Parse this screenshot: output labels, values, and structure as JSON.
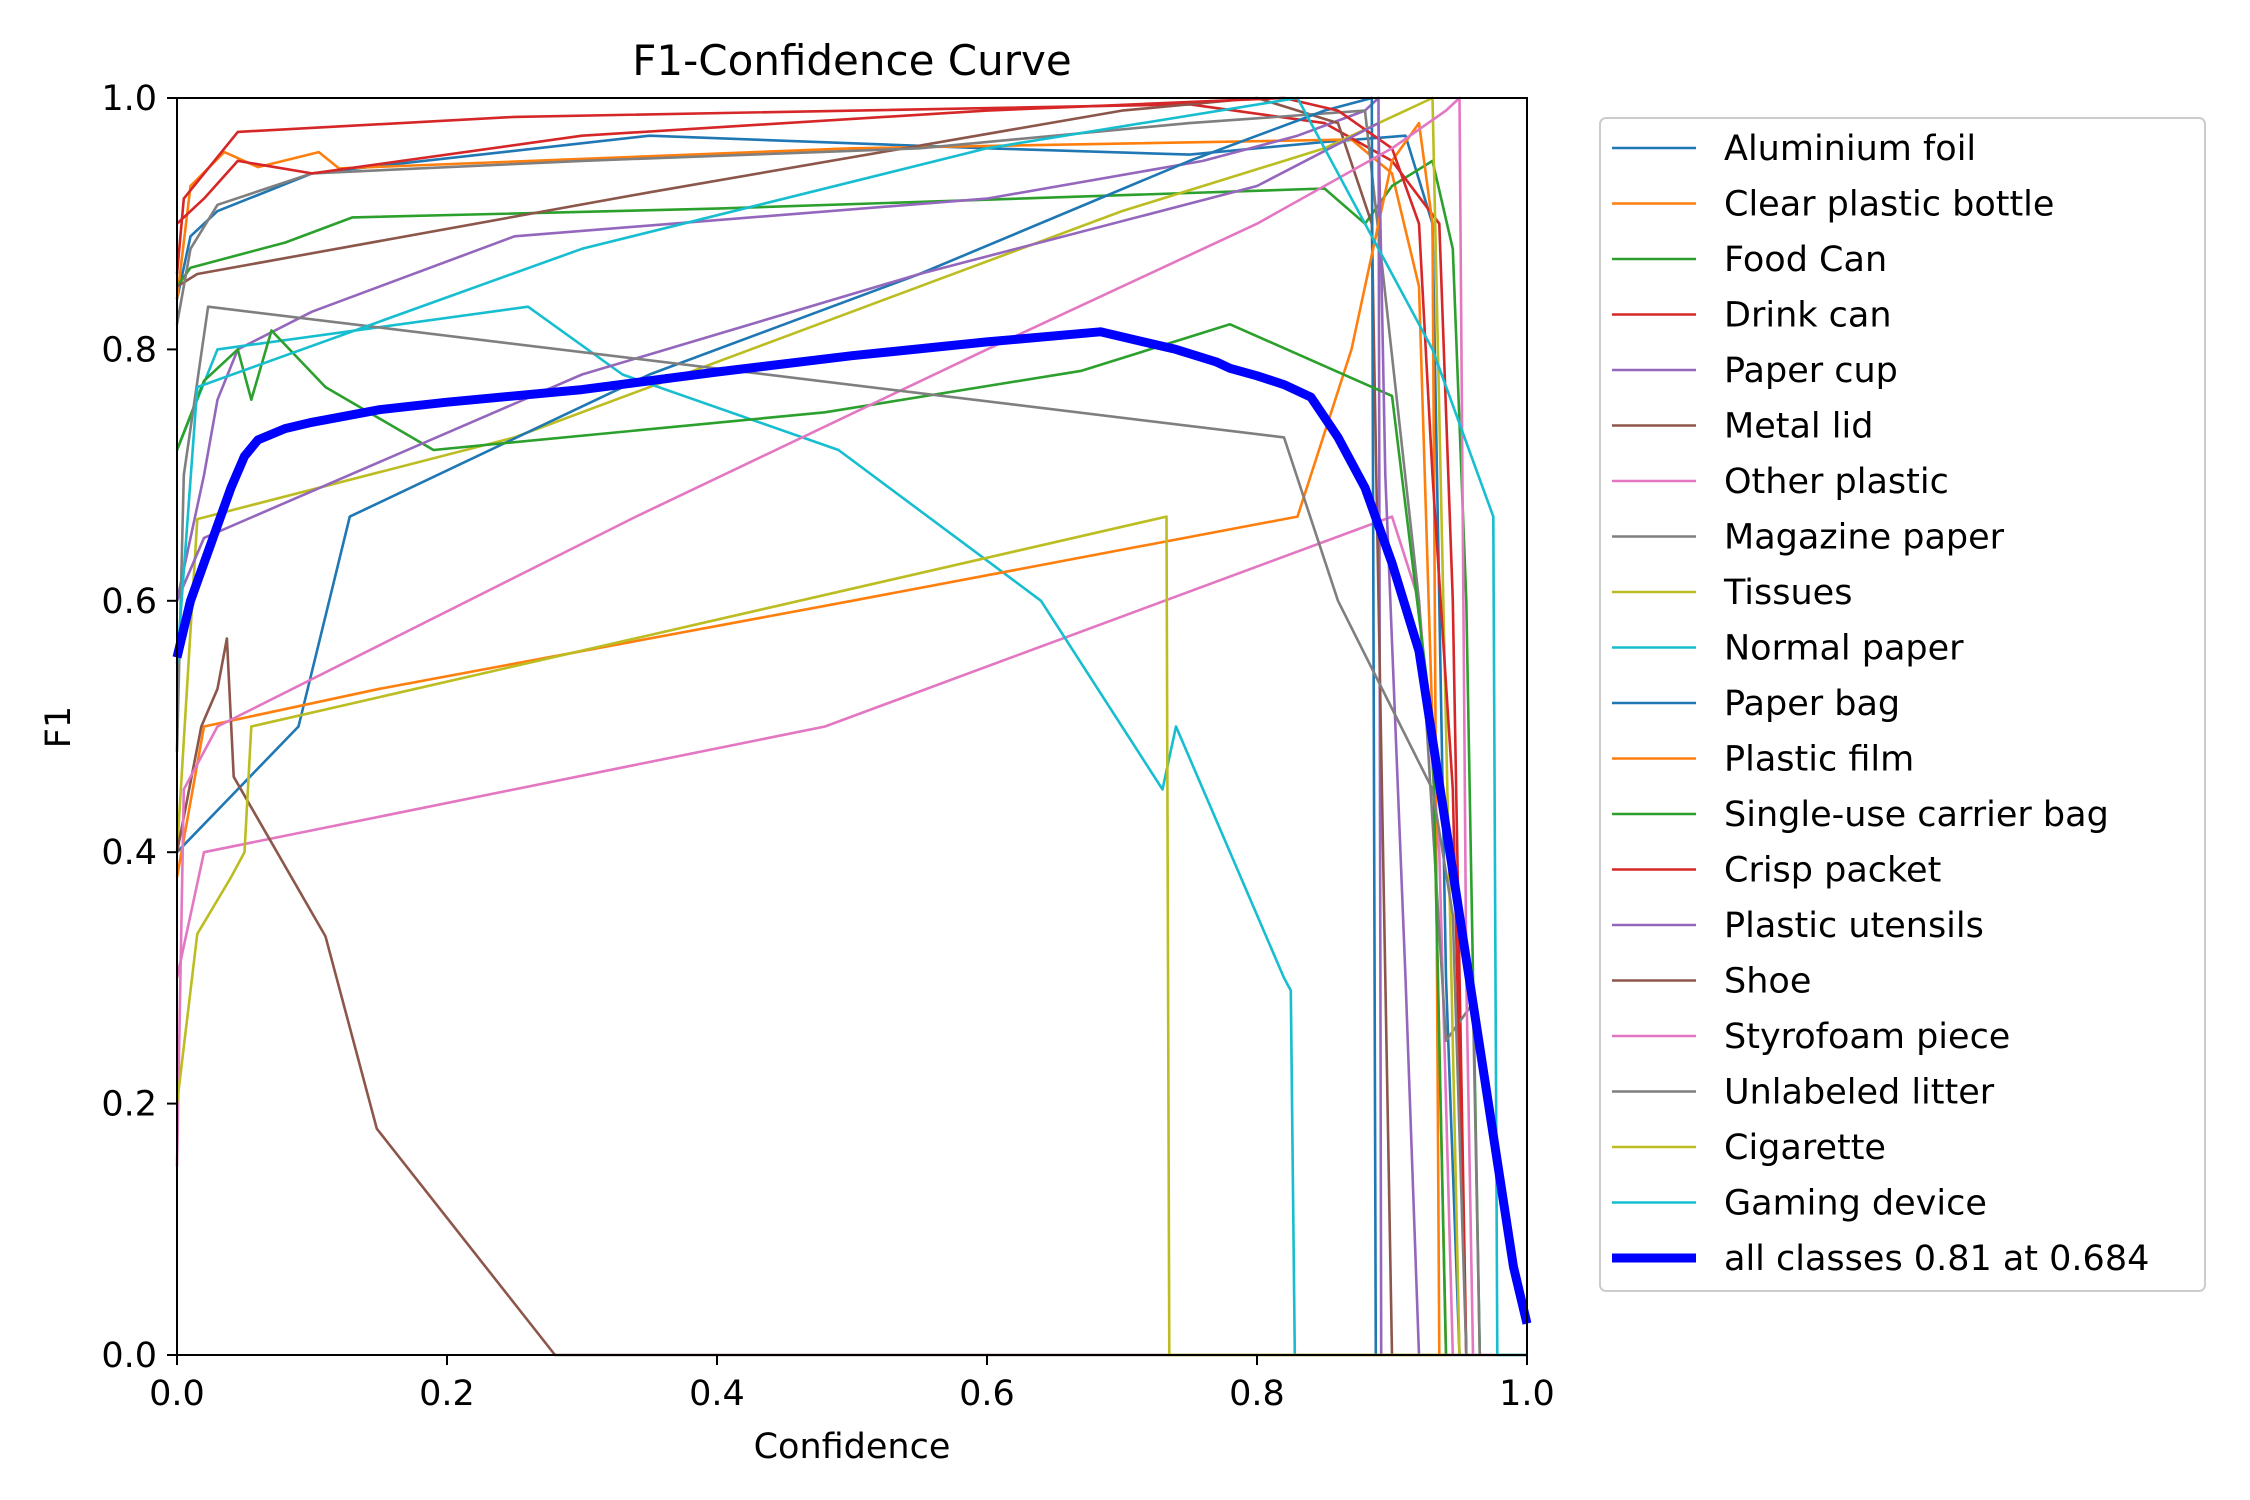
{
  "chart_data": {
    "type": "line",
    "title": "F1-Confidence Curve",
    "xlabel": "Confidence",
    "ylabel": "F1",
    "xlim": [
      0.0,
      1.0
    ],
    "ylim": [
      0.0,
      1.0
    ],
    "x_ticks": [
      "0.0",
      "0.2",
      "0.4",
      "0.6",
      "0.8",
      "1.0"
    ],
    "y_ticks": [
      "0.0",
      "0.2",
      "0.4",
      "0.6",
      "0.8",
      "1.0"
    ],
    "grid": false,
    "legend_position": "outside-right",
    "series": [
      {
        "name": "Aluminium foil",
        "color": "#1f77b4",
        "points": [
          [
            0,
            0.84
          ],
          [
            0.01,
            0.89
          ],
          [
            0.03,
            0.91
          ],
          [
            0.1,
            0.94
          ],
          [
            0.35,
            0.97
          ],
          [
            0.6,
            0.96
          ],
          [
            0.75,
            0.955
          ],
          [
            0.85,
            0.965
          ],
          [
            0.91,
            0.97
          ],
          [
            0.93,
            0.9
          ],
          [
            0.94,
            0.3
          ],
          [
            0.95,
            0
          ]
        ]
      },
      {
        "name": "Clear plastic bottle",
        "color": "#ff7f0e",
        "points": [
          [
            0,
            0.84
          ],
          [
            0.01,
            0.93
          ],
          [
            0.035,
            0.957
          ],
          [
            0.06,
            0.945
          ],
          [
            0.105,
            0.957
          ],
          [
            0.12,
            0.944
          ],
          [
            0.5,
            0.96
          ],
          [
            0.87,
            0.967
          ],
          [
            0.9,
            0.94
          ],
          [
            0.92,
            0.85
          ],
          [
            0.93,
            0.5
          ],
          [
            0.94,
            0
          ]
        ]
      },
      {
        "name": "Food Can",
        "color": "#2ca02c",
        "points": [
          [
            0,
            0.85
          ],
          [
            0.01,
            0.865
          ],
          [
            0.08,
            0.885
          ],
          [
            0.13,
            0.905
          ],
          [
            0.4,
            0.912
          ],
          [
            0.85,
            0.928
          ],
          [
            0.88,
            0.9
          ],
          [
            0.9,
            0.93
          ],
          [
            0.93,
            0.95
          ],
          [
            0.945,
            0.88
          ],
          [
            0.955,
            0.6
          ],
          [
            0.965,
            0
          ]
        ]
      },
      {
        "name": "Drink can",
        "color": "#d62728",
        "points": [
          [
            0,
            0.86
          ],
          [
            0.005,
            0.92
          ],
          [
            0.045,
            0.973
          ],
          [
            0.25,
            0.985
          ],
          [
            0.75,
            0.995
          ],
          [
            0.85,
            0.98
          ],
          [
            0.9,
            0.95
          ],
          [
            0.935,
            0.9
          ],
          [
            0.945,
            0.6
          ],
          [
            0.955,
            0
          ]
        ]
      },
      {
        "name": "Paper cup",
        "color": "#9467bd",
        "points": [
          [
            0,
            0.6
          ],
          [
            0.02,
            0.7
          ],
          [
            0.03,
            0.76
          ],
          [
            0.045,
            0.8
          ],
          [
            0.1,
            0.83
          ],
          [
            0.25,
            0.89
          ],
          [
            0.6,
            0.92
          ],
          [
            0.76,
            0.95
          ],
          [
            0.83,
            0.97
          ],
          [
            0.88,
            0.99
          ],
          [
            0.89,
            1.0
          ],
          [
            0.892,
            0
          ]
        ]
      },
      {
        "name": "Metal lid",
        "color": "#8c564b",
        "points": [
          [
            0,
            0.85
          ],
          [
            0.015,
            0.86
          ],
          [
            0.35,
            0.925
          ],
          [
            0.7,
            0.99
          ],
          [
            0.8,
            1.0
          ],
          [
            0.86,
            0.98
          ],
          [
            0.885,
            0.9
          ],
          [
            0.895,
            0.3
          ],
          [
            0.9,
            0
          ]
        ]
      },
      {
        "name": "Other plastic",
        "color": "#e377c2",
        "points": [
          [
            0,
            0.3
          ],
          [
            0.02,
            0.4
          ],
          [
            0.48,
            0.5
          ],
          [
            0.9,
            0.667
          ],
          [
            0.92,
            0.6
          ],
          [
            0.935,
            0.4
          ],
          [
            0.945,
            0
          ]
        ]
      },
      {
        "name": "Magazine paper",
        "color": "#7f7f7f",
        "points": [
          [
            0,
            0.82
          ],
          [
            0.01,
            0.88
          ],
          [
            0.03,
            0.915
          ],
          [
            0.1,
            0.94
          ],
          [
            0.3,
            0.95
          ],
          [
            0.55,
            0.96
          ],
          [
            0.75,
            0.98
          ],
          [
            0.88,
            0.99
          ],
          [
            0.92,
            0.6
          ],
          [
            0.94,
            0.25
          ],
          [
            0.96,
            0.28
          ],
          [
            0.965,
            0
          ]
        ]
      },
      {
        "name": "Tissues",
        "color": "#bcbd22",
        "points": [
          [
            0,
            0.4
          ],
          [
            0.015,
            0.665
          ],
          [
            0.25,
            0.73
          ],
          [
            0.5,
            0.83
          ],
          [
            0.7,
            0.91
          ],
          [
            0.85,
            0.96
          ],
          [
            0.93,
            1.0
          ],
          [
            0.94,
            0.5
          ],
          [
            0.95,
            0
          ]
        ]
      },
      {
        "name": "Normal paper",
        "color": "#17becf",
        "points": [
          [
            0,
            0.72
          ],
          [
            0.03,
            0.8
          ],
          [
            0.26,
            0.834
          ],
          [
            0.33,
            0.78
          ],
          [
            0.49,
            0.72
          ],
          [
            0.64,
            0.6
          ],
          [
            0.73,
            0.45
          ],
          [
            0.74,
            0.5
          ],
          [
            0.82,
            0.3
          ],
          [
            0.825,
            0.29
          ],
          [
            0.828,
            0
          ]
        ]
      },
      {
        "name": "Paper bag",
        "color": "#1f77b4",
        "points": [
          [
            0,
            0.4
          ],
          [
            0.09,
            0.5
          ],
          [
            0.128,
            0.667
          ],
          [
            0.35,
            0.78
          ],
          [
            0.55,
            0.86
          ],
          [
            0.75,
            0.95
          ],
          [
            0.85,
            0.99
          ],
          [
            0.885,
            1.0
          ],
          [
            0.888,
            0
          ]
        ]
      },
      {
        "name": "Plastic film",
        "color": "#ff7f0e",
        "points": [
          [
            0,
            0.38
          ],
          [
            0.02,
            0.5
          ],
          [
            0.15,
            0.53
          ],
          [
            0.5,
            0.6
          ],
          [
            0.83,
            0.667
          ],
          [
            0.87,
            0.8
          ],
          [
            0.9,
            0.95
          ],
          [
            0.92,
            0.98
          ],
          [
            0.93,
            0.9
          ],
          [
            0.935,
            0
          ]
        ]
      },
      {
        "name": "Single-use carrier bag",
        "color": "#2ca02c",
        "points": [
          [
            0,
            0.72
          ],
          [
            0.02,
            0.775
          ],
          [
            0.045,
            0.8
          ],
          [
            0.055,
            0.76
          ],
          [
            0.07,
            0.815
          ],
          [
            0.11,
            0.77
          ],
          [
            0.19,
            0.72
          ],
          [
            0.48,
            0.75
          ],
          [
            0.67,
            0.783
          ],
          [
            0.78,
            0.82
          ],
          [
            0.9,
            0.763
          ],
          [
            0.93,
            0.5
          ],
          [
            0.94,
            0
          ]
        ]
      },
      {
        "name": "Crisp packet",
        "color": "#d62728",
        "points": [
          [
            0,
            0.9
          ],
          [
            0.02,
            0.92
          ],
          [
            0.045,
            0.95
          ],
          [
            0.1,
            0.94
          ],
          [
            0.3,
            0.97
          ],
          [
            0.6,
            0.99
          ],
          [
            0.82,
            1.0
          ],
          [
            0.86,
            0.99
          ],
          [
            0.9,
            0.96
          ],
          [
            0.92,
            0.9
          ],
          [
            0.93,
            0.7
          ],
          [
            0.945,
            0.45
          ],
          [
            0.955,
            0
          ]
        ]
      },
      {
        "name": "Plastic utensils",
        "color": "#9467bd",
        "points": [
          [
            0,
            0.6
          ],
          [
            0.02,
            0.65
          ],
          [
            0.3,
            0.78
          ],
          [
            0.55,
            0.86
          ],
          [
            0.8,
            0.93
          ],
          [
            0.89,
            0.98
          ],
          [
            0.895,
            0.7
          ],
          [
            0.91,
            0.3
          ],
          [
            0.92,
            0
          ]
        ]
      },
      {
        "name": "Shoe",
        "color": "#8c564b",
        "points": [
          [
            0,
            0.4
          ],
          [
            0.018,
            0.5
          ],
          [
            0.03,
            0.53
          ],
          [
            0.037,
            0.57
          ],
          [
            0.042,
            0.46
          ],
          [
            0.11,
            0.333
          ],
          [
            0.148,
            0.18
          ],
          [
            0.28,
            0
          ],
          [
            1.0,
            0
          ]
        ]
      },
      {
        "name": "Styrofoam piece",
        "color": "#e377c2",
        "points": [
          [
            0,
            0.15
          ],
          [
            0.005,
            0.45
          ],
          [
            0.03,
            0.5
          ],
          [
            0.34,
            0.667
          ],
          [
            0.6,
            0.8
          ],
          [
            0.8,
            0.9
          ],
          [
            0.9,
            0.96
          ],
          [
            0.94,
            0.99
          ],
          [
            0.95,
            1.0
          ],
          [
            0.955,
            0.3
          ],
          [
            0.96,
            0
          ]
        ]
      },
      {
        "name": "Unlabeled litter",
        "color": "#7f7f7f",
        "points": [
          [
            0,
            0.48
          ],
          [
            0.005,
            0.7
          ],
          [
            0.023,
            0.834
          ],
          [
            0.82,
            0.73
          ],
          [
            0.86,
            0.6
          ],
          [
            0.93,
            0.45
          ],
          [
            0.945,
            0.35
          ],
          [
            0.955,
            0
          ]
        ]
      },
      {
        "name": "Cigarette",
        "color": "#bcbd22",
        "points": [
          [
            0,
            0.2
          ],
          [
            0.015,
            0.335
          ],
          [
            0.04,
            0.38
          ],
          [
            0.05,
            0.4
          ],
          [
            0.055,
            0.5
          ],
          [
            0.733,
            0.667
          ],
          [
            0.735,
            0
          ],
          [
            0.94,
            0
          ]
        ]
      },
      {
        "name": "Gaming device",
        "color": "#17becf",
        "points": [
          [
            0,
            0.55
          ],
          [
            0.015,
            0.77
          ],
          [
            0.3,
            0.88
          ],
          [
            0.6,
            0.96
          ],
          [
            0.83,
            1.0
          ],
          [
            0.84,
            0.98
          ],
          [
            0.9,
            0.86
          ],
          [
            0.93,
            0.8
          ],
          [
            0.975,
            0.667
          ],
          [
            0.978,
            0
          ],
          [
            1.0,
            0
          ]
        ]
      },
      {
        "name": "all classes 0.81 at 0.684",
        "color": "#0000ff",
        "bold": true,
        "points": [
          [
            0,
            0.555
          ],
          [
            0.01,
            0.6
          ],
          [
            0.02,
            0.63
          ],
          [
            0.03,
            0.66
          ],
          [
            0.04,
            0.69
          ],
          [
            0.05,
            0.715
          ],
          [
            0.06,
            0.728
          ],
          [
            0.08,
            0.737
          ],
          [
            0.1,
            0.742
          ],
          [
            0.15,
            0.752
          ],
          [
            0.2,
            0.758
          ],
          [
            0.3,
            0.768
          ],
          [
            0.4,
            0.782
          ],
          [
            0.5,
            0.795
          ],
          [
            0.6,
            0.806
          ],
          [
            0.684,
            0.814
          ],
          [
            0.74,
            0.8
          ],
          [
            0.77,
            0.79
          ],
          [
            0.78,
            0.785
          ],
          [
            0.8,
            0.779
          ],
          [
            0.82,
            0.772
          ],
          [
            0.84,
            0.762
          ],
          [
            0.86,
            0.73
          ],
          [
            0.88,
            0.69
          ],
          [
            0.9,
            0.63
          ],
          [
            0.92,
            0.56
          ],
          [
            0.94,
            0.42
          ],
          [
            0.96,
            0.28
          ],
          [
            0.98,
            0.14
          ],
          [
            0.99,
            0.07
          ],
          [
            1.0,
            0.025
          ]
        ]
      }
    ]
  }
}
